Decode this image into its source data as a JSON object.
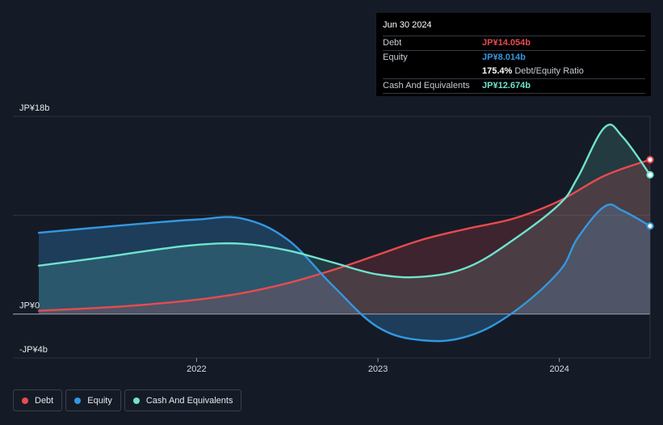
{
  "chart_data": {
    "type": "area",
    "title": "",
    "xlabel": "",
    "ylabel": "",
    "unit": "JP¥b",
    "ylim": [
      -4,
      18
    ],
    "y_tick_labels": [
      {
        "value": 18,
        "label": "JP¥18b"
      },
      {
        "value": 0,
        "label": "JP¥0"
      },
      {
        "value": -4,
        "label": "-JP¥4b"
      }
    ],
    "x_ticks": [
      {
        "value": 2022.0,
        "label": "2022"
      },
      {
        "value": 2023.0,
        "label": "2023"
      },
      {
        "value": 2024.0,
        "label": "2024"
      }
    ],
    "xlim": [
      2021.13,
      2024.5
    ],
    "series": [
      {
        "name": "Debt",
        "color": "#e84b4f",
        "x": [
          2021.13,
          2021.5,
          2021.75,
          2022.0,
          2022.25,
          2022.5,
          2022.75,
          2023.0,
          2023.25,
          2023.5,
          2023.75,
          2024.0,
          2024.25,
          2024.5
        ],
        "values": [
          0.3,
          0.6,
          0.9,
          1.3,
          1.9,
          2.8,
          4.0,
          5.4,
          6.8,
          7.8,
          8.7,
          10.3,
          12.6,
          14.054
        ]
      },
      {
        "name": "Equity",
        "color": "#3398e1",
        "x": [
          2021.13,
          2021.4,
          2021.75,
          2022.0,
          2022.25,
          2022.5,
          2022.75,
          2023.0,
          2023.25,
          2023.5,
          2023.75,
          2024.0,
          2024.1,
          2024.25,
          2024.35,
          2024.5
        ],
        "values": [
          7.4,
          7.8,
          8.3,
          8.6,
          8.7,
          6.8,
          2.6,
          -1.2,
          -2.4,
          -2.0,
          0.2,
          3.9,
          6.9,
          9.8,
          9.4,
          8.014
        ]
      },
      {
        "name": "Cash And Equivalents",
        "color": "#6fe3cf",
        "x": [
          2021.13,
          2021.5,
          2021.75,
          2022.0,
          2022.25,
          2022.5,
          2022.75,
          2023.0,
          2023.25,
          2023.5,
          2023.75,
          2024.0,
          2024.1,
          2024.25,
          2024.35,
          2024.5
        ],
        "values": [
          4.4,
          5.2,
          5.8,
          6.3,
          6.4,
          5.8,
          4.7,
          3.6,
          3.4,
          4.3,
          6.8,
          10.0,
          12.4,
          17.0,
          16.1,
          12.674
        ]
      }
    ],
    "grid": true,
    "legend_position": "bottom-left"
  },
  "tooltip": {
    "date": "Jun 30 2024",
    "debt_label": "Debt",
    "debt_value": "JP¥14.054b",
    "equity_label": "Equity",
    "equity_value": "JP¥8.014b",
    "ratio_value": "175.4%",
    "ratio_label": "Debt/Equity Ratio",
    "cash_label": "Cash And Equivalents",
    "cash_value": "JP¥12.674b"
  },
  "legend": {
    "items": [
      {
        "label": "Debt",
        "color": "#e84b4f"
      },
      {
        "label": "Equity",
        "color": "#3398e1"
      },
      {
        "label": "Cash And Equivalents",
        "color": "#6fe3cf"
      }
    ]
  }
}
